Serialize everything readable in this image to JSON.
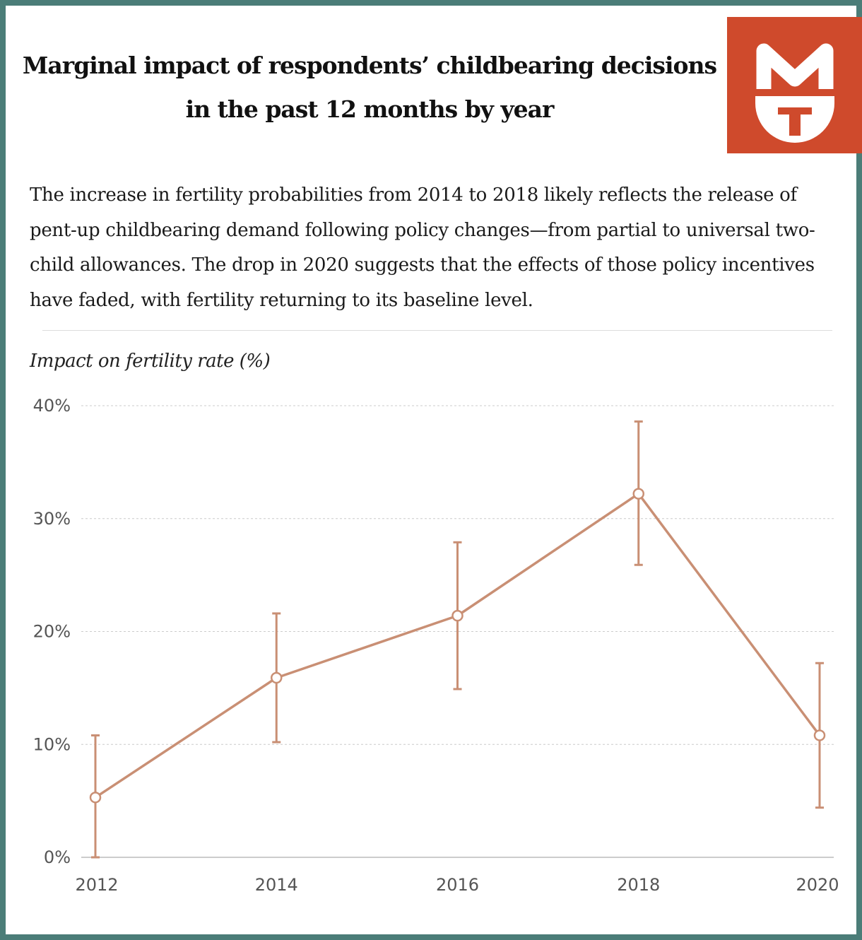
{
  "title_lines": [
    "Marginal impact of respondents’ childbearing decisions",
    "in the past 12 months by year"
  ],
  "description": "The increase in fertility probabilities from 2014 to 2018 likely reflects the release of pent-up childbearing demand following policy changes—from partial to universal two-child allowances. The drop in 2020 suggests that the effects of those policy incentives have faded, with fertility returning to its baseline level.",
  "logo": {
    "icon": "mg-logo-icon",
    "background": "#cf4a2c"
  },
  "colors": {
    "frame": "#4b7d78",
    "series": "#c98f74",
    "grid": "#cccccc"
  },
  "chart_data": {
    "type": "line",
    "ylabel": "Impact on fertility rate (%)",
    "xlabel": "",
    "x": [
      2012,
      2014,
      2016,
      2018,
      2020
    ],
    "xlim": [
      2012,
      2020
    ],
    "ylim": [
      0,
      40
    ],
    "yticks": [
      0,
      10,
      20,
      30,
      40
    ],
    "ytick_labels": [
      "0%",
      "10%",
      "20%",
      "30%",
      "40%"
    ],
    "xtick_labels": [
      "2012",
      "2014",
      "2016",
      "2018",
      "2020"
    ],
    "grid": true,
    "series": [
      {
        "values": [
          5.3,
          15.9,
          21.4,
          32.2,
          10.8
        ],
        "lower": [
          0.0,
          10.2,
          14.9,
          25.9,
          4.4
        ],
        "upper": [
          10.8,
          21.6,
          27.9,
          38.6,
          17.2
        ]
      }
    ]
  }
}
